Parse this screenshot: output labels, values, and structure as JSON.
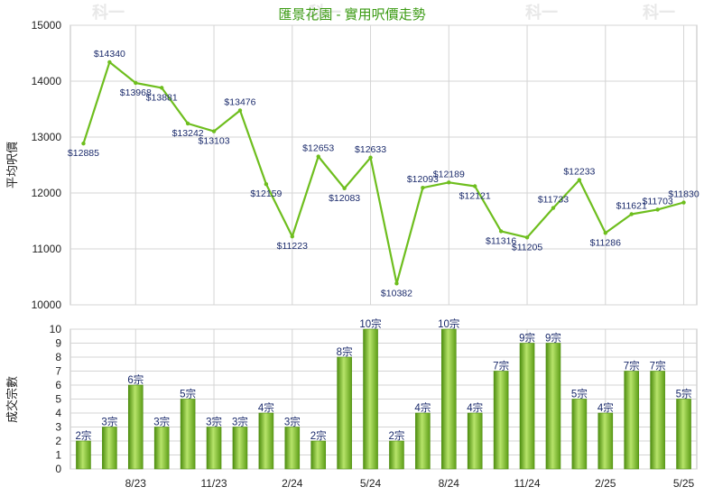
{
  "chart_data": [
    {
      "type": "line",
      "title": "匯景花園 - 實用呎價走勢",
      "ylabel": "平均呎價",
      "ylim": [
        10000,
        15000
      ],
      "yticks": [
        10000,
        11000,
        12000,
        13000,
        14000,
        15000
      ],
      "grid": true,
      "values": [
        12885,
        14340,
        13968,
        13881,
        13242,
        13103,
        13476,
        12159,
        11223,
        12653,
        12083,
        12633,
        10382,
        12093,
        12189,
        12121,
        11316,
        11205,
        11733,
        12233,
        11286,
        11621,
        11703,
        11830
      ],
      "point_labels": [
        "$12885",
        "$14340",
        "$13968",
        "$13881",
        "$13242",
        "$13103",
        "$13476",
        "$12159",
        "$11223",
        "$12653",
        "$12083",
        "$12633",
        "$10382",
        "$12093",
        "$12189",
        "$12121",
        "$11316",
        "$11205",
        "$11733",
        "$12233",
        "$11286",
        "$11621",
        "$11703",
        "$11830"
      ],
      "colors": {
        "line": "#6ebe1e",
        "grid": "#d4d4d4",
        "title": "#3a9a12"
      }
    },
    {
      "type": "bar",
      "ylabel": "成交宗數",
      "ylim": [
        0,
        10
      ],
      "yticks": [
        0,
        1,
        2,
        3,
        4,
        5,
        6,
        7,
        8,
        9,
        10
      ],
      "grid": true,
      "categories": [
        "",
        "",
        "8/23",
        "",
        "",
        "11/23",
        "",
        "",
        "2/24",
        "",
        "",
        "5/24",
        "",
        "",
        "8/24",
        "",
        "",
        "11/24",
        "",
        "",
        "2/25",
        "",
        "",
        "5/25"
      ],
      "values": [
        2,
        3,
        6,
        3,
        5,
        3,
        3,
        4,
        3,
        2,
        8,
        10,
        2,
        4,
        10,
        4,
        7,
        9,
        9,
        5,
        4,
        7,
        7,
        5
      ],
      "bar_labels": [
        "2宗",
        "3宗",
        "6宗",
        "3宗",
        "5宗",
        "3宗",
        "3宗",
        "4宗",
        "3宗",
        "2宗",
        "8宗",
        "10宗",
        "2宗",
        "4宗",
        "10宗",
        "4宗",
        "7宗",
        "9宗",
        "9宗",
        "5宗",
        "4宗",
        "7宗",
        "7宗",
        "5宗"
      ],
      "colors": {
        "bar": "#7cc425",
        "bar_dark": "#4e8e10",
        "bar_light": "#b7e46a"
      }
    }
  ],
  "watermark": "科一"
}
